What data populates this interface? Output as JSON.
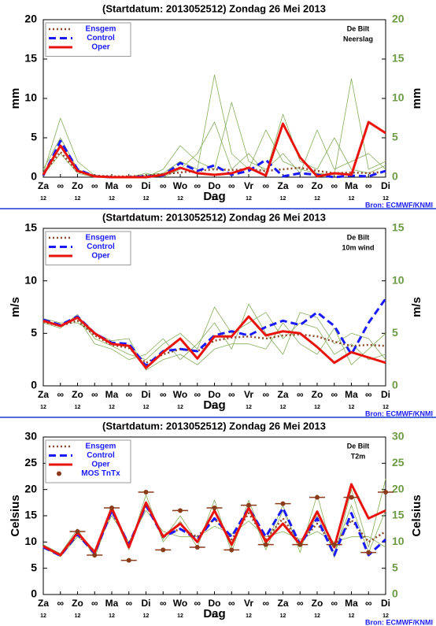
{
  "chart_data": [
    {
      "type": "line",
      "title": "(Startdatum: 2013052512)  Zondag   26 Mei      2013",
      "location": "De Bilt",
      "variable": "Neerslag",
      "ylabel": "mm",
      "xlabel": "Dag",
      "source": "Bron: ECMWF/KNMI",
      "categories": [
        "Za",
        "∞",
        "Zo",
        "∞",
        "Ma",
        "∞",
        "Di",
        "∞",
        "Wo",
        "∞",
        "Do",
        "∞",
        "Vr",
        "∞",
        "Za",
        "∞",
        "Zo",
        "∞",
        "Ma",
        "∞",
        "Di"
      ],
      "hours": [
        "12",
        null,
        "12",
        null,
        "12",
        null,
        "12",
        null,
        "12",
        null,
        "12",
        null,
        "12",
        null,
        "12",
        null,
        "12",
        null,
        "12",
        null,
        "12"
      ],
      "ylim": [
        0,
        20
      ],
      "yticks": [
        0,
        5,
        10,
        15,
        20
      ],
      "series": [
        {
          "color": "#86ad5c",
          "style": "thin",
          "values": [
            0.5,
            7.5,
            2,
            0.2,
            0,
            0,
            0.3,
            0.5,
            2,
            1,
            13,
            3,
            1,
            6,
            2,
            1,
            0.5,
            0.3,
            12.5,
            1,
            2
          ]
        },
        {
          "color": "#86ad5c",
          "style": "thin",
          "values": [
            0.3,
            3,
            0.5,
            0,
            0,
            0.1,
            0,
            1,
            4,
            2,
            1,
            9.5,
            2,
            1,
            3,
            0.5,
            6,
            1,
            2,
            3,
            1
          ]
        },
        {
          "color": "#86ad5c",
          "style": "thin",
          "values": [
            1,
            5,
            1,
            0.1,
            0,
            0,
            0.5,
            0,
            1,
            3,
            7,
            1,
            3,
            0.5,
            8,
            2,
            1,
            5,
            1,
            0.5,
            1.5
          ]
        },
        {
          "name": "Ensgem",
          "color": "#8b4a2b",
          "style": "dotted",
          "values": [
            0.5,
            3.2,
            0.7,
            0.2,
            0.1,
            0.1,
            0.2,
            0.4,
            0.6,
            0.8,
            1,
            0.9,
            1,
            0.8,
            1,
            1.2,
            0.8,
            0.5,
            0.6,
            0.5,
            0.7
          ]
        },
        {
          "name": "Control",
          "color": "#1a1aff",
          "style": "dashed",
          "values": [
            0.2,
            4.6,
            1,
            0.1,
            0,
            0,
            0.1,
            0.2,
            1.8,
            0.8,
            1.5,
            0.3,
            0.8,
            2.2,
            0.1,
            0.5,
            0.3,
            0,
            0.2,
            0.1,
            0.8
          ]
        },
        {
          "name": "Oper",
          "color": "#e8140c",
          "style": "solid",
          "values": [
            0.3,
            4,
            0.8,
            0.1,
            0,
            0,
            0,
            0.3,
            1.2,
            0.5,
            0.3,
            0.5,
            1.2,
            0.2,
            6.8,
            2.5,
            0.1,
            0.5,
            0.3,
            7,
            5.6
          ]
        }
      ]
    },
    {
      "type": "line",
      "title": "(Startdatum: 2013052512)  Zondag   26 Mei      2013",
      "location": "De Bilt",
      "variable": "10m wind",
      "ylabel": "m/s",
      "xlabel": "Dag",
      "source": "Bron: ECMWF/KNMI",
      "categories": [
        "Za",
        "∞",
        "Zo",
        "∞",
        "Ma",
        "∞",
        "Di",
        "∞",
        "Wo",
        "∞",
        "Do",
        "∞",
        "Vr",
        "∞",
        "Za",
        "∞",
        "Zo",
        "∞",
        "Ma",
        "∞",
        "Di"
      ],
      "hours": [
        "12",
        null,
        "12",
        null,
        "12",
        null,
        "12",
        null,
        "12",
        null,
        "12",
        null,
        "12",
        null,
        "12",
        null,
        "12",
        null,
        "12",
        null,
        "12"
      ],
      "ylim": [
        0,
        15
      ],
      "yticks": [
        0,
        5,
        10,
        15
      ],
      "series": [
        {
          "color": "#86ad5c",
          "style": "thin",
          "values": [
            6,
            5.5,
            6.8,
            4.5,
            3.8,
            3,
            2.5,
            4,
            5,
            3.5,
            7.5,
            5,
            6,
            7,
            4.5,
            6,
            5.5,
            3,
            4,
            2.5,
            3
          ]
        },
        {
          "color": "#86ad5c",
          "style": "thin",
          "values": [
            6.4,
            6,
            6,
            5,
            4.3,
            4.5,
            1.5,
            2.5,
            3,
            2,
            3.5,
            4,
            4,
            3.5,
            6,
            4,
            3,
            5.5,
            2,
            3.5,
            5
          ]
        },
        {
          "color": "#86ad5c",
          "style": "thin",
          "values": [
            6.2,
            5.8,
            6.5,
            4,
            3.5,
            2.5,
            3,
            4.5,
            2.5,
            4,
            6,
            3.5,
            7.8,
            5,
            3,
            7,
            6.5,
            4,
            5,
            4.5,
            2.5
          ]
        },
        {
          "name": "Ensgem",
          "color": "#8b4a2b",
          "style": "dotted",
          "values": [
            6.1,
            5.7,
            6.2,
            4.8,
            3.9,
            3.6,
            2.2,
            3,
            3.5,
            3.3,
            4.3,
            4.6,
            4.7,
            4.5,
            4.8,
            4.9,
            4.7,
            4.2,
            3.8,
            3.9,
            3.8
          ]
        },
        {
          "name": "Control",
          "color": "#1a1aff",
          "style": "dashed",
          "values": [
            6.3,
            5.8,
            6.6,
            5,
            4.1,
            4,
            1.9,
            3.3,
            3.5,
            3.3,
            4.8,
            5.2,
            4.8,
            5.6,
            6.2,
            5.8,
            7,
            5.7,
            3,
            6,
            8.3
          ]
        },
        {
          "name": "Oper",
          "color": "#e8140c",
          "style": "solid",
          "values": [
            6.2,
            5.7,
            6.5,
            5,
            4,
            3.8,
            1.7,
            3.2,
            4.5,
            2.6,
            4.7,
            4.7,
            6.6,
            4.8,
            5.2,
            5,
            3.7,
            2.2,
            3.2,
            2.7,
            2.2
          ]
        }
      ]
    },
    {
      "type": "line",
      "title": "(Startdatum: 2013052512)  Zondag   26 Mei      2013",
      "location": "De Bilt",
      "variable": "T2m",
      "ylabel": "Celsius",
      "xlabel": "Dag",
      "source": "Bron: ECMWF/KNMI",
      "categories": [
        "Za",
        "∞",
        "Zo",
        "∞",
        "Ma",
        "∞",
        "Di",
        "∞",
        "Wo",
        "∞",
        "Do",
        "∞",
        "Vr",
        "∞",
        "Za",
        "∞",
        "Zo",
        "∞",
        "Ma",
        "∞",
        "Di"
      ],
      "hours": [
        "12",
        null,
        "12",
        null,
        "12",
        null,
        "12",
        null,
        "12",
        null,
        "12",
        null,
        "12",
        null,
        "12",
        null,
        "12",
        null,
        "12",
        null,
        "12"
      ],
      "ylim": [
        0,
        30
      ],
      "yticks": [
        0,
        5,
        10,
        15,
        20,
        25,
        30
      ],
      "series": [
        {
          "color": "#86ad5c",
          "style": "thin",
          "values": [
            9.5,
            7.8,
            12.5,
            7,
            16,
            8.5,
            19,
            10,
            14,
            9,
            18,
            8,
            18,
            9.5,
            17,
            8,
            19,
            7,
            20,
            9,
            22
          ]
        },
        {
          "color": "#86ad5c",
          "style": "thin",
          "values": [
            9,
            7.2,
            11,
            8.5,
            15,
            10,
            16,
            12,
            11,
            11,
            13,
            11.5,
            14,
            11,
            12,
            10.5,
            12,
            10,
            11,
            11,
            9
          ]
        },
        {
          "color": "#86ad5c",
          "style": "thin",
          "values": [
            9.2,
            7.5,
            12,
            7.5,
            16.5,
            9,
            17.5,
            10.5,
            15,
            10,
            16,
            9,
            17,
            8.5,
            16,
            9,
            15,
            8,
            17,
            8,
            16
          ]
        },
        {
          "name": "Ensgem",
          "color": "#8b4a2b",
          "style": "dotted",
          "values": [
            9.1,
            7.6,
            11.5,
            8,
            15.8,
            9.5,
            17,
            11.2,
            12.5,
            11,
            14.5,
            10.5,
            15.5,
            10.5,
            14.5,
            9.8,
            13.5,
            9,
            14.2,
            10,
            12
          ]
        },
        {
          "name": "Control",
          "color": "#1a1aff",
          "style": "dashed",
          "values": [
            9,
            7.4,
            11.5,
            7.8,
            16,
            9.5,
            17,
            11,
            12.5,
            10.5,
            14.5,
            11,
            16.5,
            11,
            16.5,
            9.5,
            14.5,
            7.5,
            15.5,
            7.5,
            10.5
          ]
        },
        {
          "name": "Oper",
          "color": "#e8140c",
          "style": "solid",
          "values": [
            9.2,
            7.5,
            11.8,
            8,
            16.5,
            9,
            17.5,
            11,
            13.5,
            10,
            16,
            9.5,
            16.5,
            10,
            13.5,
            9.5,
            15.8,
            9,
            21,
            14.5,
            16
          ]
        },
        {
          "name": "MOS TnTx",
          "color": "#8b3a1a",
          "style": "points",
          "values": [
            null,
            null,
            12,
            7.5,
            16.5,
            6.5,
            19.5,
            8.5,
            16,
            9,
            16.5,
            8.5,
            17,
            9.5,
            17.3,
            9.5,
            18.5,
            9.5,
            18.5,
            8,
            19.5
          ]
        }
      ]
    }
  ]
}
